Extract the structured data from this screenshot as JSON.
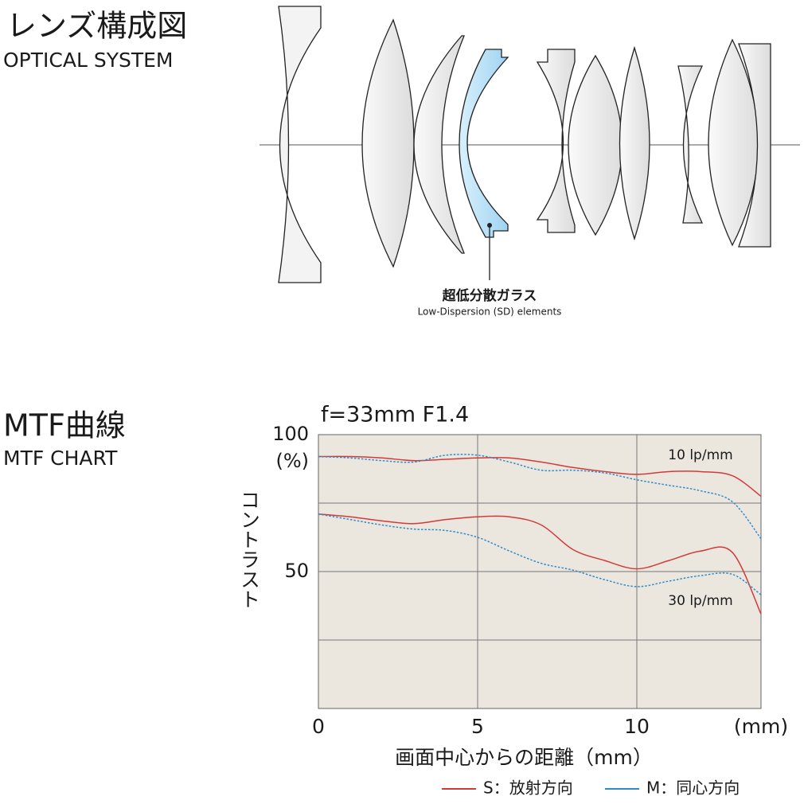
{
  "optical": {
    "title_ja": "レンズ構成図",
    "title_en": "OPTICAL SYSTEM",
    "callout_ja": "超低分散ガラス",
    "callout_en": "Low-Dispersion (SD) elements"
  },
  "mtf_heading": {
    "ja": "MTF曲線",
    "en": "MTF CHART"
  },
  "chart_data": {
    "type": "line",
    "title": "f=33mm F1.4",
    "y_label": "コントラスト",
    "y_unit": "(%)",
    "x_label": "画面中心からの距離（mm）",
    "x_unit": "(mm)",
    "annotations": [
      "10 lp/mm",
      "30 lp/mm"
    ],
    "x": [
      0,
      1,
      2,
      3,
      4,
      5,
      6,
      7,
      8,
      9,
      10,
      11,
      12,
      13,
      13.9
    ],
    "series": [
      {
        "name": "S：放射方向",
        "color": "#d33a3a",
        "style": "solid",
        "curves": [
          [
            92,
            92,
            91.5,
            90.5,
            91,
            91.5,
            91.5,
            90,
            88,
            86.5,
            85.5,
            86.5,
            86.5,
            85,
            77.5
          ],
          [
            71,
            70,
            68.5,
            67.5,
            69,
            70,
            70,
            67,
            58,
            54,
            51,
            54,
            57.5,
            57,
            34.5
          ]
        ]
      },
      {
        "name": "M：同心方向",
        "color": "#2e8bc9",
        "style": "dotted",
        "curves": [
          [
            92,
            91.5,
            90.5,
            90,
            92.5,
            92.5,
            90,
            87,
            87,
            86,
            83.5,
            81.5,
            79.5,
            75.5,
            62
          ],
          [
            71,
            69,
            67,
            65.5,
            65,
            62.5,
            57.5,
            53,
            50.5,
            47,
            44.5,
            46.5,
            48.5,
            49,
            41.5
          ]
        ]
      }
    ],
    "xlim": [
      0,
      13.9
    ],
    "ylim": [
      0,
      100
    ],
    "xticks": [
      0,
      5,
      10
    ],
    "yticks": [
      50,
      100
    ],
    "xgrid": [
      5,
      10
    ],
    "ygrid": [
      25,
      50,
      75
    ],
    "plot_background": "#ebe7df"
  }
}
